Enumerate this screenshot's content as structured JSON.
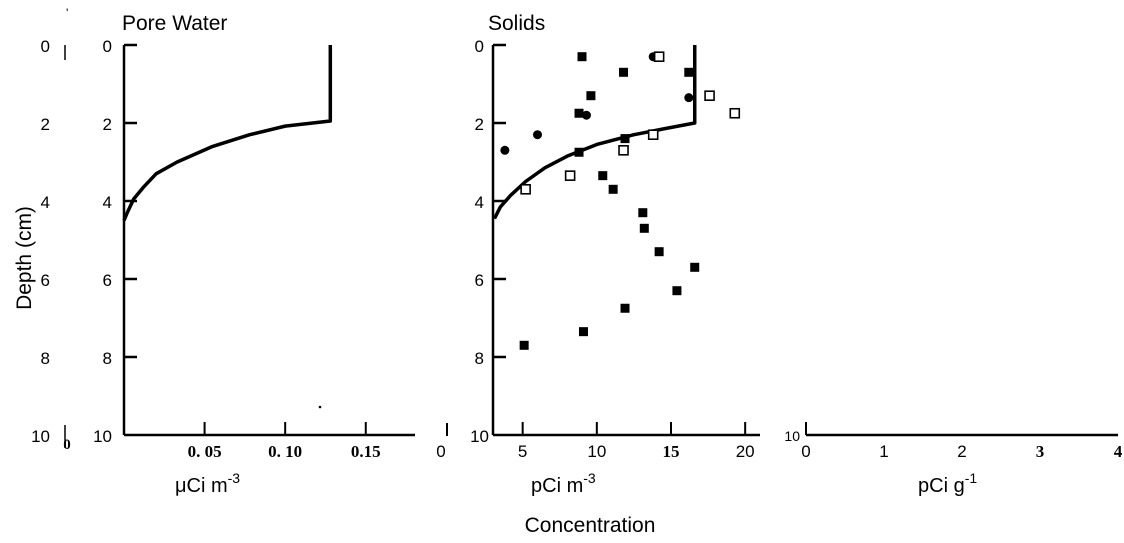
{
  "chart_data": [
    {
      "type": "line",
      "title": "Pore Water",
      "xlabel": "μCi m⁻³",
      "ylabel": "Depth (cm)",
      "x_range": [
        0,
        0.17
      ],
      "y_range": [
        0,
        10
      ],
      "y_reversed": true,
      "x_ticks": [
        {
          "value": 0.05,
          "label": "0. 05"
        },
        {
          "value": 0.1,
          "label": "0. 10"
        },
        {
          "value": 0.15,
          "label": "0.15"
        }
      ],
      "y_ticks": [
        {
          "value": 0,
          "label": "0"
        },
        {
          "value": 2,
          "label": "2"
        },
        {
          "value": 4,
          "label": "4"
        },
        {
          "value": 6,
          "label": "6"
        },
        {
          "value": 8,
          "label": "8"
        },
        {
          "value": 10,
          "label": "10"
        }
      ],
      "series": [
        {
          "points": [
            [
              0.128,
              0
            ],
            [
              0.128,
              1.95
            ],
            [
              0.1,
              2.08
            ],
            [
              0.078,
              2.3
            ],
            [
              0.055,
              2.6
            ],
            [
              0.033,
              3.0
            ],
            [
              0.02,
              3.3
            ],
            [
              0.012,
              3.65
            ],
            [
              0.006,
              3.95
            ],
            [
              0.002,
              4.3
            ],
            [
              0,
              4.5
            ]
          ]
        }
      ]
    },
    {
      "type": "scatter",
      "title": "Solids",
      "xlabel": "pCi m⁻³",
      "x_range": [
        3,
        21
      ],
      "y_range": [
        0,
        10
      ],
      "y_reversed": true,
      "x_ticks": [
        {
          "value": 5,
          "label": "5"
        },
        {
          "value": 10,
          "label": "10"
        },
        {
          "value": 15,
          "label": "15"
        },
        {
          "value": 20,
          "label": "20"
        }
      ],
      "y_ticks": [
        {
          "value": 0,
          "label": "0"
        },
        {
          "value": 2,
          "label": "2"
        },
        {
          "value": 4,
          "label": "4"
        },
        {
          "value": 6,
          "label": "6"
        },
        {
          "value": 8,
          "label": "8"
        },
        {
          "value": 10,
          "label": "10"
        }
      ],
      "series": [
        {
          "marker": "filled-square",
          "points": [
            [
              9.0,
              0.3
            ],
            [
              11.8,
              0.7
            ],
            [
              16.2,
              0.7
            ],
            [
              9.6,
              1.3
            ],
            [
              8.8,
              1.75
            ],
            [
              11.9,
              2.4
            ],
            [
              8.8,
              2.75
            ],
            [
              10.4,
              3.35
            ],
            [
              11.1,
              3.7
            ],
            [
              13.1,
              4.3
            ],
            [
              13.2,
              4.7
            ],
            [
              14.2,
              5.3
            ],
            [
              16.6,
              5.7
            ],
            [
              15.4,
              6.3
            ],
            [
              11.9,
              6.75
            ],
            [
              9.1,
              7.35
            ],
            [
              5.1,
              7.7
            ]
          ]
        },
        {
          "marker": "filled-circle",
          "points": [
            [
              13.8,
              0.3
            ],
            [
              16.2,
              1.35
            ],
            [
              9.3,
              1.8
            ],
            [
              6.0,
              2.3
            ],
            [
              3.8,
              2.7
            ]
          ]
        },
        {
          "marker": "open-square",
          "points": [
            [
              14.2,
              0.3
            ],
            [
              17.6,
              1.3
            ],
            [
              19.3,
              1.75
            ],
            [
              13.8,
              2.3
            ],
            [
              11.8,
              2.7
            ],
            [
              8.2,
              3.35
            ],
            [
              5.2,
              3.7
            ]
          ]
        },
        {
          "marker": "line",
          "points": [
            [
              16.6,
              0
            ],
            [
              16.6,
              2.0
            ],
            [
              14.5,
              2.15
            ],
            [
              12.5,
              2.3
            ],
            [
              10,
              2.55
            ],
            [
              8,
              2.85
            ],
            [
              6.5,
              3.15
            ],
            [
              5.2,
              3.5
            ],
            [
              4.2,
              3.85
            ],
            [
              3.5,
              4.15
            ],
            [
              3.1,
              4.45
            ]
          ]
        }
      ]
    },
    {
      "type": "line",
      "xlabel": "pCi g⁻¹",
      "x_range": [
        0,
        4
      ],
      "x_ticks": [
        {
          "value": 0,
          "label": "0"
        },
        {
          "value": 1,
          "label": "1"
        },
        {
          "value": 2,
          "label": "2"
        },
        {
          "value": 3,
          "label": "3"
        },
        {
          "value": 4,
          "label": "4"
        }
      ],
      "y_ticks": [
        {
          "value": 10,
          "label": "10"
        }
      ],
      "series": []
    }
  ],
  "shared": {
    "left_depth_ticks": [
      "0",
      "2",
      "4",
      "6",
      "8",
      "10"
    ],
    "xlabel": "Concentration",
    "stray_zero_labels": [
      "0",
      "0"
    ]
  }
}
